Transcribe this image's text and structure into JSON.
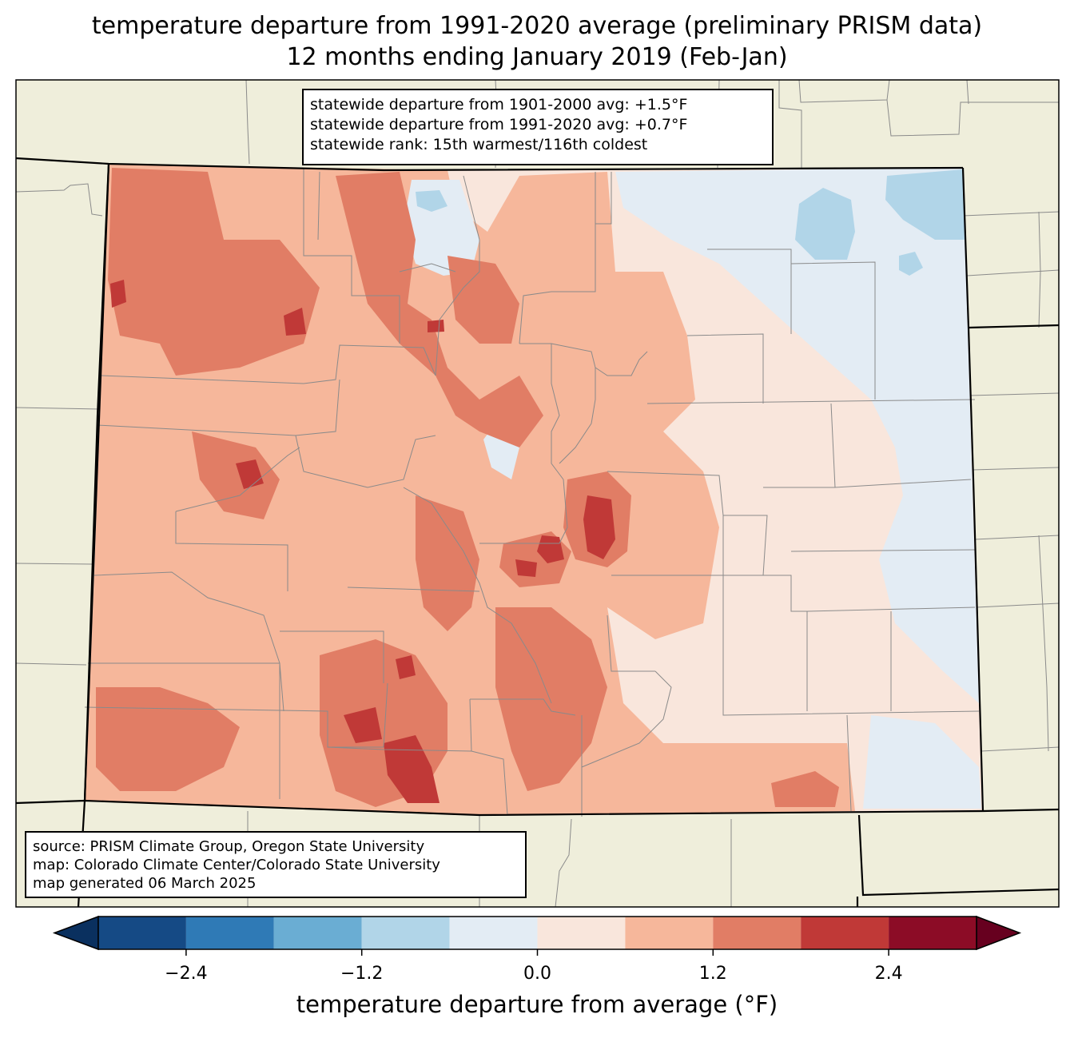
{
  "title": {
    "line1": "temperature departure from 1991-2020 average (preliminary PRISM data)",
    "line2": "12 months ending January 2019 (Feb-Jan)"
  },
  "stats": {
    "line1": "statewide departure from 1901-2000 avg: +1.5°F",
    "line2": "statewide departure from 1991-2020 avg: +0.7°F",
    "line3": "statewide rank: 15th warmest/116th coldest"
  },
  "credits": {
    "line1": "source: PRISM Climate Group, Oregon State University",
    "line2": "map: Colorado Climate Center/Colorado State University",
    "line3": "map generated 06 March 2025"
  },
  "colorbar": {
    "label": "temperature departure from average (°F)",
    "ticks": [
      "−2.4",
      "−1.2",
      "0.0",
      "1.2",
      "2.4"
    ],
    "tick_values": [
      -2.4,
      -1.2,
      0.0,
      1.2,
      2.4
    ],
    "bins": [
      -3.0,
      -2.4,
      -1.8,
      -1.2,
      -0.6,
      0.0,
      0.6,
      1.2,
      1.8,
      2.4,
      3.0
    ],
    "colors": [
      "#154a85",
      "#2f7ab6",
      "#6aadd3",
      "#b1d5e8",
      "#e3ecf4",
      "#f9e6dc",
      "#f6b79b",
      "#e17d65",
      "#c03937",
      "#8c0c26"
    ],
    "under_color": "#0a305f",
    "over_color": "#67001f"
  },
  "map_colors": {
    "land": "#efeedb",
    "county_line": "#8a8a8a",
    "state_line": "#000000"
  }
}
